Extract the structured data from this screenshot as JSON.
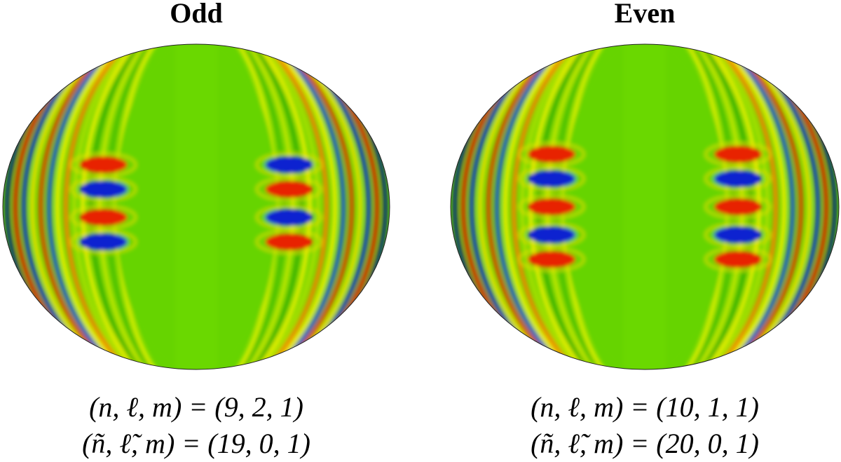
{
  "panels": [
    {
      "title": "Odd",
      "labels": [
        "(n, ℓ, m) = (9, 2, 1)",
        "(ñ, ℓ̃, m) = (19, 0, 1)"
      ]
    },
    {
      "title": "Even",
      "labels": [
        "(n, ℓ, m) = (10, 1, 1)",
        "(ñ, ℓ̃, m) = (20, 0, 1)"
      ]
    }
  ]
}
